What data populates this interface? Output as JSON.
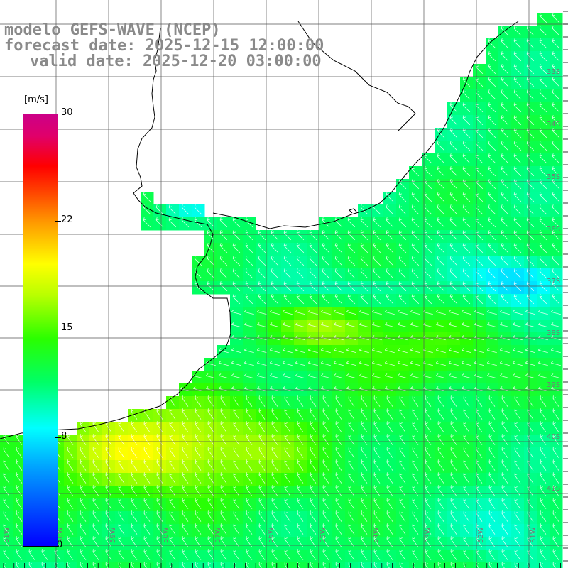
{
  "header": {
    "model": "modelo GEFS-WAVE (NCEP)",
    "forecast": "forecast date: 2025-12-15 12:00:00",
    "valid": "valid date: 2025-12-20 03:00:00"
  },
  "colorbar": {
    "unit": "[m/s]",
    "min": 0,
    "max": 30,
    "tick_values": [
      "30",
      "22",
      "15",
      "8",
      "0"
    ]
  },
  "axes": {
    "lat_labels": [
      "33S",
      "34S",
      "35S",
      "36S",
      "37S",
      "38S",
      "39S",
      "40S",
      "41S"
    ],
    "lon_labels": [
      "61W",
      "60W",
      "59W",
      "58W",
      "57W",
      "56W",
      "55W",
      "54W",
      "53W",
      "52W",
      "51W"
    ]
  },
  "colors": {
    "land": "#ffffff",
    "grid": "#444444",
    "coast": "#000000",
    "arrow": "#ffffff",
    "title": "#8a8a8a"
  }
}
